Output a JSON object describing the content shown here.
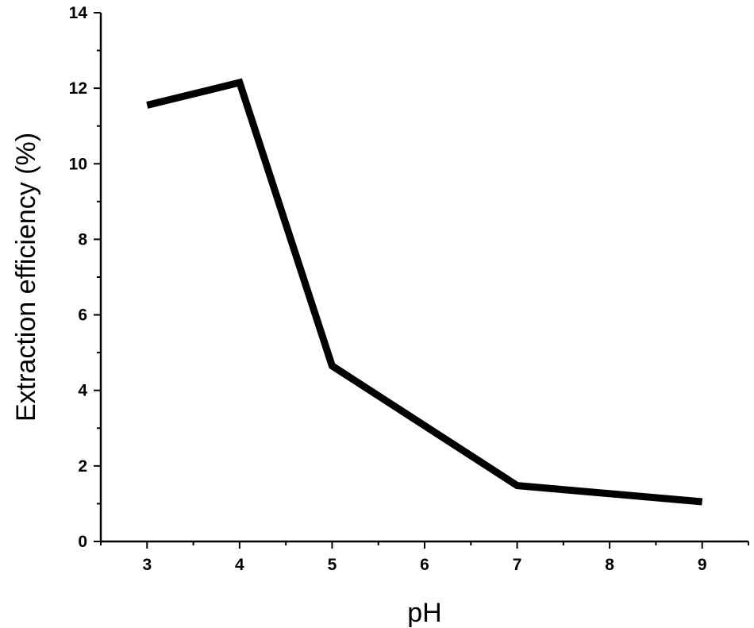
{
  "chart_data": {
    "type": "line",
    "title": "",
    "xlabel": "pH",
    "ylabel": "Extraction efficiency (%)",
    "xlim": [
      2.5,
      9.5
    ],
    "ylim": [
      0,
      14
    ],
    "x_ticks": [
      3,
      4,
      5,
      6,
      7,
      8,
      9
    ],
    "y_ticks": [
      0,
      2,
      4,
      6,
      8,
      10,
      12,
      14
    ],
    "grid": false,
    "series": [
      {
        "x": [
          3,
          4,
          5,
          7,
          9
        ],
        "values": [
          11.55,
          12.15,
          4.65,
          1.48,
          1.05
        ],
        "color": "#000000"
      }
    ]
  }
}
